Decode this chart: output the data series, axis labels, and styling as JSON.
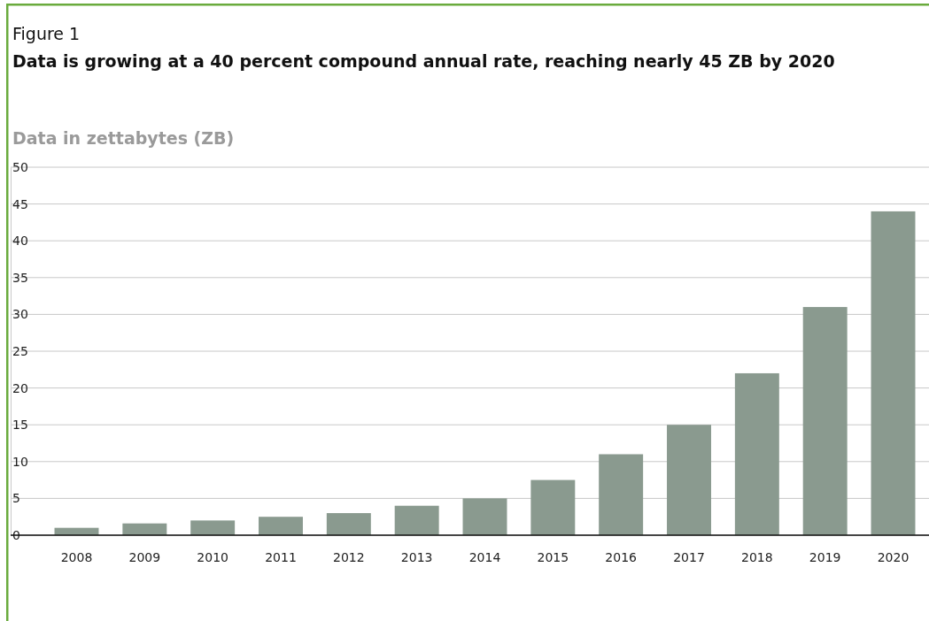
{
  "chart_data": {
    "type": "bar",
    "subtitle": "Figure 1",
    "title": "Data is growing at a 40 percent compound annual rate, reaching nearly 45 ZB by 2020",
    "ylabel": "Data in zettabytes (ZB)",
    "categories": [
      "2008",
      "2009",
      "2010",
      "2011",
      "2012",
      "2013",
      "2014",
      "2015",
      "2016",
      "2017",
      "2018",
      "2019",
      "2020"
    ],
    "values": [
      1,
      1.6,
      2,
      2.5,
      3,
      4,
      5,
      7.5,
      11,
      15,
      22,
      31,
      44
    ],
    "color": "#8a9a8f",
    "ylim": [
      0,
      50
    ],
    "yticks": [
      0,
      5,
      10,
      15,
      20,
      25,
      30,
      35,
      40,
      45,
      50
    ],
    "grid": "y"
  }
}
